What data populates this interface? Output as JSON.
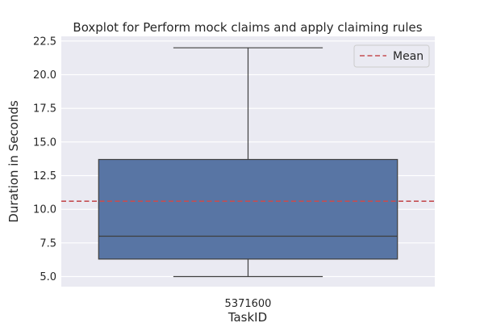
{
  "chart_data": {
    "type": "box",
    "title": "Boxplot for Perform mock claims and apply claiming rules",
    "xlabel": "TaskID",
    "ylabel": "Duration in Seconds",
    "categories": [
      "5371600"
    ],
    "ylim": [
      4.25,
      22.85
    ],
    "yticks": [
      "5.0",
      "7.5",
      "10.0",
      "12.5",
      "15.0",
      "17.5",
      "20.0",
      "22.5"
    ],
    "boxes": [
      {
        "category": "5371600",
        "min": 5.0,
        "q1": 6.3,
        "median": 8.0,
        "q3": 13.7,
        "max": 22.0
      }
    ],
    "mean": 10.6,
    "legend": {
      "position": "top-right",
      "entries": [
        "Mean"
      ]
    },
    "grid": true,
    "colors": {
      "background": "#eaeaf2",
      "box": "#5875a4",
      "box_edge": "#3f3f3f",
      "mean_line": "#c44e52",
      "grid": "#ffffff"
    }
  }
}
